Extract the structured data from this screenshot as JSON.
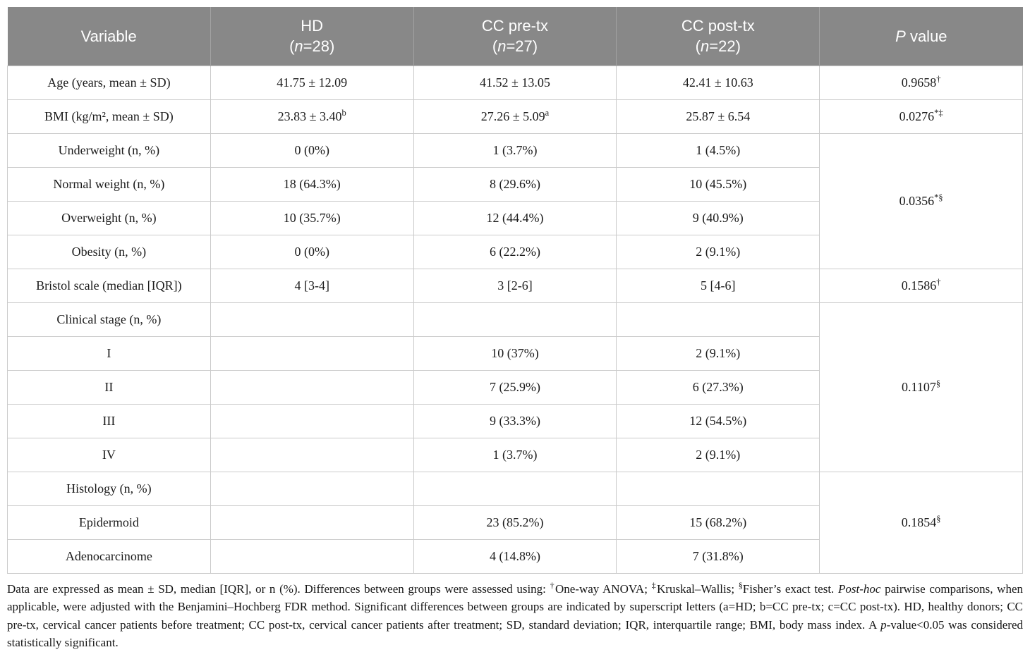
{
  "colors": {
    "header_bg": "#888888",
    "header_text": "#ffffff",
    "cell_border": "#cbcbcb",
    "body_text": "#1b1b1b"
  },
  "header": {
    "variable": "Variable",
    "hd": {
      "title": "HD",
      "sub_pre": "(",
      "sub_n": "n",
      "sub_post": "=28)"
    },
    "cc_pre": {
      "title": "CC pre-tx",
      "sub_pre": "(",
      "sub_n": "n",
      "sub_post": "=27)"
    },
    "cc_post": {
      "title": "CC post-tx",
      "sub_pre": "(",
      "sub_n": "n",
      "sub_post": "=22)"
    },
    "p": {
      "italic": "P",
      "rest": " value"
    }
  },
  "rows": [
    {
      "label": "Age (years, mean ± SD)",
      "hd": {
        "v": "41.75 ± 12.09",
        "sup": ""
      },
      "pre": {
        "v": "41.52 ± 13.05",
        "sup": ""
      },
      "post": {
        "v": "42.41 ± 10.63",
        "sup": ""
      },
      "p": {
        "v": "0.9658",
        "sup": "†"
      }
    },
    {
      "label": "BMI (kg/m², mean ± SD)",
      "hd": {
        "v": "23.83 ± 3.40",
        "sup": "b"
      },
      "pre": {
        "v": "27.26 ± 5.09",
        "sup": "a"
      },
      "post": {
        "v": "25.87 ± 6.54",
        "sup": ""
      },
      "p": {
        "v": "0.0276",
        "sup": "*‡"
      }
    },
    {
      "label": "Underweight (n, %)",
      "hd": {
        "v": "0 (0%)",
        "sup": ""
      },
      "pre": {
        "v": "1 (3.7%)",
        "sup": ""
      },
      "post": {
        "v": "1 (4.5%)",
        "sup": ""
      },
      "p": {
        "v": "0.0356",
        "sup": "*§"
      }
    },
    {
      "label": "Normal weight (n, %)",
      "hd": {
        "v": "18 (64.3%)",
        "sup": ""
      },
      "pre": {
        "v": "8 (29.6%)",
        "sup": ""
      },
      "post": {
        "v": "10 (45.5%)",
        "sup": ""
      }
    },
    {
      "label": "Overweight (n, %)",
      "hd": {
        "v": "10 (35.7%)",
        "sup": ""
      },
      "pre": {
        "v": "12 (44.4%)",
        "sup": ""
      },
      "post": {
        "v": "9 (40.9%)",
        "sup": ""
      }
    },
    {
      "label": "Obesity (n, %)",
      "hd": {
        "v": "0 (0%)",
        "sup": ""
      },
      "pre": {
        "v": "6 (22.2%)",
        "sup": ""
      },
      "post": {
        "v": "2 (9.1%)",
        "sup": ""
      }
    },
    {
      "label": "Bristol scale (median [IQR])",
      "hd": {
        "v": "4 [3-4]",
        "sup": ""
      },
      "pre": {
        "v": "3 [2-6]",
        "sup": ""
      },
      "post": {
        "v": "5 [4-6]",
        "sup": ""
      },
      "p": {
        "v": "0.1586",
        "sup": "†"
      }
    },
    {
      "label": "Clinical stage (n, %)",
      "hd": {
        "v": "",
        "sup": ""
      },
      "pre": {
        "v": "",
        "sup": ""
      },
      "post": {
        "v": "",
        "sup": ""
      },
      "p": {
        "v": "0.1107",
        "sup": "§"
      }
    },
    {
      "label": "I",
      "hd": {
        "v": "",
        "sup": ""
      },
      "pre": {
        "v": "10 (37%)",
        "sup": ""
      },
      "post": {
        "v": "2 (9.1%)",
        "sup": ""
      }
    },
    {
      "label": "II",
      "hd": {
        "v": "",
        "sup": ""
      },
      "pre": {
        "v": "7 (25.9%)",
        "sup": ""
      },
      "post": {
        "v": "6 (27.3%)",
        "sup": ""
      }
    },
    {
      "label": "III",
      "hd": {
        "v": "",
        "sup": ""
      },
      "pre": {
        "v": "9 (33.3%)",
        "sup": ""
      },
      "post": {
        "v": "12 (54.5%)",
        "sup": ""
      }
    },
    {
      "label": "IV",
      "hd": {
        "v": "",
        "sup": ""
      },
      "pre": {
        "v": "1 (3.7%)",
        "sup": ""
      },
      "post": {
        "v": "2 (9.1%)",
        "sup": ""
      }
    },
    {
      "label": "Histology (n, %)",
      "hd": {
        "v": "",
        "sup": ""
      },
      "pre": {
        "v": "",
        "sup": ""
      },
      "post": {
        "v": "",
        "sup": ""
      },
      "p": {
        "v": "0.1854",
        "sup": "§"
      }
    },
    {
      "label": "Epidermoid",
      "hd": {
        "v": "",
        "sup": ""
      },
      "pre": {
        "v": "23 (85.2%)",
        "sup": ""
      },
      "post": {
        "v": "15 (68.2%)",
        "sup": ""
      }
    },
    {
      "label": "Adenocarcinome",
      "hd": {
        "v": "",
        "sup": ""
      },
      "pre": {
        "v": "4 (14.8%)",
        "sup": ""
      },
      "post": {
        "v": "7 (31.8%)",
        "sup": ""
      }
    }
  ],
  "footnote": {
    "seg1": "Data are expressed as mean ± SD, median [IQR], or n (%). Differences between groups were assessed using: ",
    "sup1": "†",
    "seg2": "One-way ANOVA; ",
    "sup2": "‡",
    "seg3": "Kruskal–Wallis; ",
    "sup3": "§",
    "seg4": "Fisher’s exact test. ",
    "it1": "Post-hoc",
    "seg5": " pairwise comparisons, when applicable, were adjusted with the Benjamini–Hochberg FDR method. Significant differences between groups are indicated by superscript letters (a=HD; b=CC pre-tx; c=CC post-tx). HD, healthy donors; CC pre-tx, cervical cancer patients before treatment; CC post-tx, cervical cancer patients after treatment; SD, standard deviation; IQR, interquartile range; BMI, body mass index. A ",
    "it2": "p",
    "seg6": "-value<0.05 was considered statistically significant."
  }
}
